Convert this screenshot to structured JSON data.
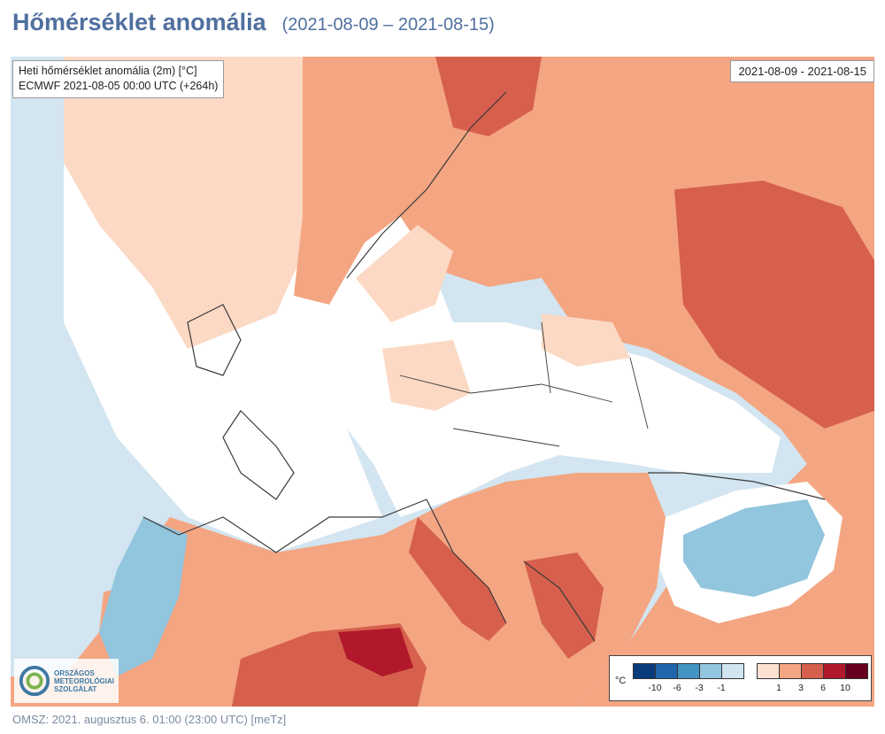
{
  "header": {
    "title": "Hőmérséklet anomália",
    "subtitle": "(2021-08-09 – 2021-08-15)"
  },
  "map": {
    "info_line1": "Heti hőmérséklet anomália (2m) [°C]",
    "info_line2": "ECMWF 2021-08-05 00:00 UTC (+264h)",
    "date_range": "2021-08-09 - 2021-08-15",
    "logo_text": [
      "ORSZÁGOS",
      "METEOROLÓGIAI",
      "SZOLGÁLAT"
    ],
    "legend": {
      "unit": "°C",
      "negative_colors": [
        "#0a3b7a",
        "#2166ac",
        "#4393c3",
        "#92c5de",
        "#d1e5f0"
      ],
      "negative_ticks": [
        "-10",
        "-6",
        "-3",
        "-1"
      ],
      "positive_colors": [
        "#fde0d1",
        "#f4a582",
        "#d6604d",
        "#b2182b",
        "#67001f"
      ],
      "positive_ticks": [
        "1",
        "3",
        "6",
        "10"
      ]
    }
  },
  "footer": {
    "text": "OMSZ: 2021. augusztus 6. 01:00 (23:00  UTC)  [meTz]"
  }
}
